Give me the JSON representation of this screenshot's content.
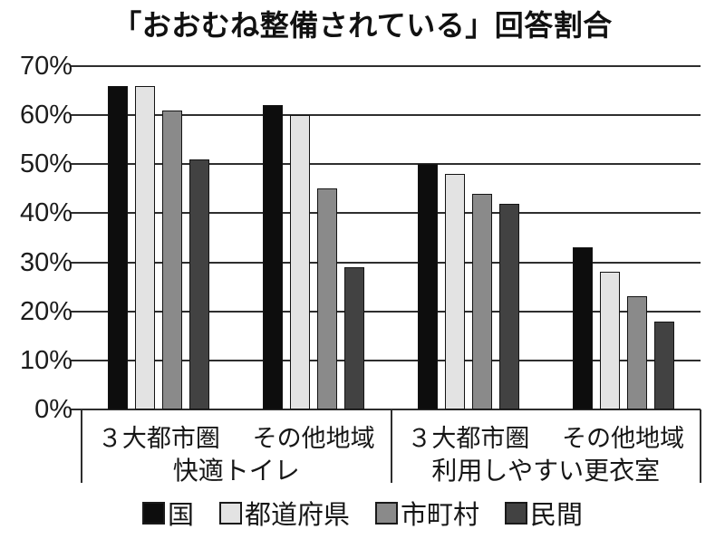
{
  "title": "「おおむね整備されている」回答割合",
  "chart_data": {
    "type": "bar",
    "title": "「おおむね整備されている」回答割合",
    "y_axis": {
      "unit": "%",
      "min": 0,
      "max": 70,
      "step": 10,
      "tick_labels": [
        "0%",
        "10%",
        "20%",
        "30%",
        "40%",
        "50%",
        "60%",
        "70%"
      ]
    },
    "grid": true,
    "legend_position": "bottom",
    "section_labels": [
      "快適トイレ",
      "利用しやすい更衣室"
    ],
    "group_labels": [
      "３大都市圏",
      "その他地域",
      "３大都市圏",
      "その他地域"
    ],
    "categories": [
      "快適トイレ ３大都市圏",
      "快適トイレ その他地域",
      "利用しやすい更衣室 ３大都市圏",
      "利用しやすい更衣室 その他地域"
    ],
    "series": [
      {
        "name": "国",
        "color": "#0d0d0d",
        "values": [
          66,
          62,
          50,
          33
        ]
      },
      {
        "name": "都道府県",
        "color": "#e3e3e3",
        "values": [
          66,
          60,
          48,
          28
        ]
      },
      {
        "name": "市町村",
        "color": "#8a8a8a",
        "values": [
          61,
          45,
          44,
          23
        ]
      },
      {
        "name": "民間",
        "color": "#424242",
        "values": [
          51,
          29,
          42,
          18
        ]
      }
    ]
  }
}
